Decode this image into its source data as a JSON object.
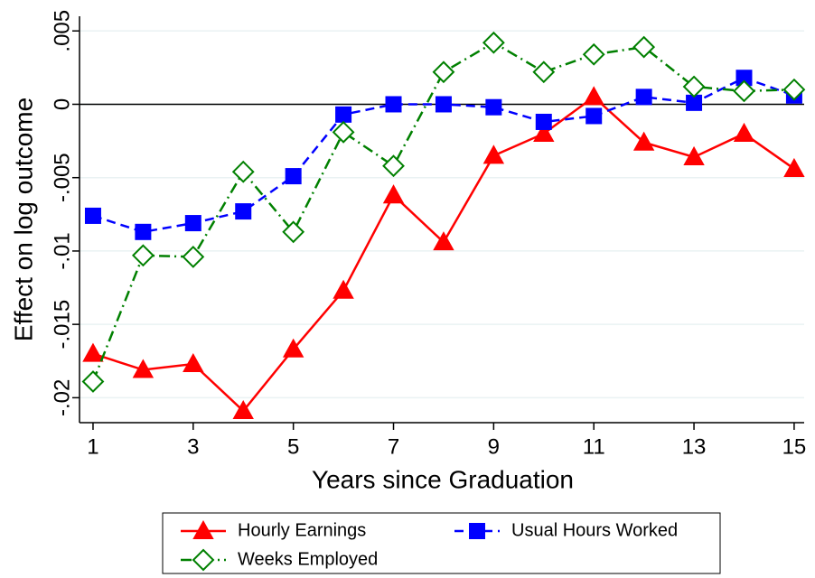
{
  "chart_data": {
    "type": "line",
    "xlabel": "Years since Graduation",
    "ylabel": "Effect on log outcome",
    "x": [
      1,
      2,
      3,
      4,
      5,
      6,
      7,
      8,
      9,
      10,
      11,
      12,
      13,
      14,
      15
    ],
    "xlim": [
      0.73,
      15.2
    ],
    "xticks": [
      1,
      3,
      5,
      7,
      9,
      11,
      13,
      15
    ],
    "ylim": [
      -0.0217,
      0.006
    ],
    "yticks": [
      {
        "value": -0.02,
        "label": "-.02"
      },
      {
        "value": -0.015,
        "label": "-.015"
      },
      {
        "value": -0.01,
        "label": "-.01"
      },
      {
        "value": -0.005,
        "label": "-.005"
      },
      0,
      {
        "value": 0.005,
        "label": ".005"
      }
    ],
    "grid": true,
    "reference_line": 0,
    "series": [
      {
        "name": "Hourly Earnings",
        "color": "#ff0000",
        "dash": "solid",
        "marker": "triangle",
        "values": [
          -0.017,
          -0.0181,
          -0.0177,
          -0.0209,
          -0.0167,
          -0.0127,
          -0.0062,
          -0.0094,
          -0.0035,
          -0.002,
          0.0005,
          -0.0026,
          -0.0036,
          -0.002,
          -0.0044
        ]
      },
      {
        "name": "Usual Hours Worked",
        "color": "#0000ff",
        "dash": "dashed",
        "marker": "square",
        "values": [
          -0.0076,
          -0.0087,
          -0.0081,
          -0.0073,
          -0.0049,
          -0.0007,
          0,
          0,
          -0.0002,
          -0.0012,
          -0.0008,
          0.0005,
          0.0001,
          0.0018,
          0.0006
        ]
      },
      {
        "name": "Weeks Employed",
        "color": "#008000",
        "dash": "dashdot",
        "marker": "diamond",
        "values": [
          -0.0189,
          -0.0103,
          -0.0104,
          -0.0046,
          -0.0087,
          -0.0019,
          -0.0042,
          0.0022,
          0.0042,
          0.0022,
          0.0034,
          0.0039,
          0.0012,
          0.0009,
          0.001
        ]
      }
    ]
  }
}
